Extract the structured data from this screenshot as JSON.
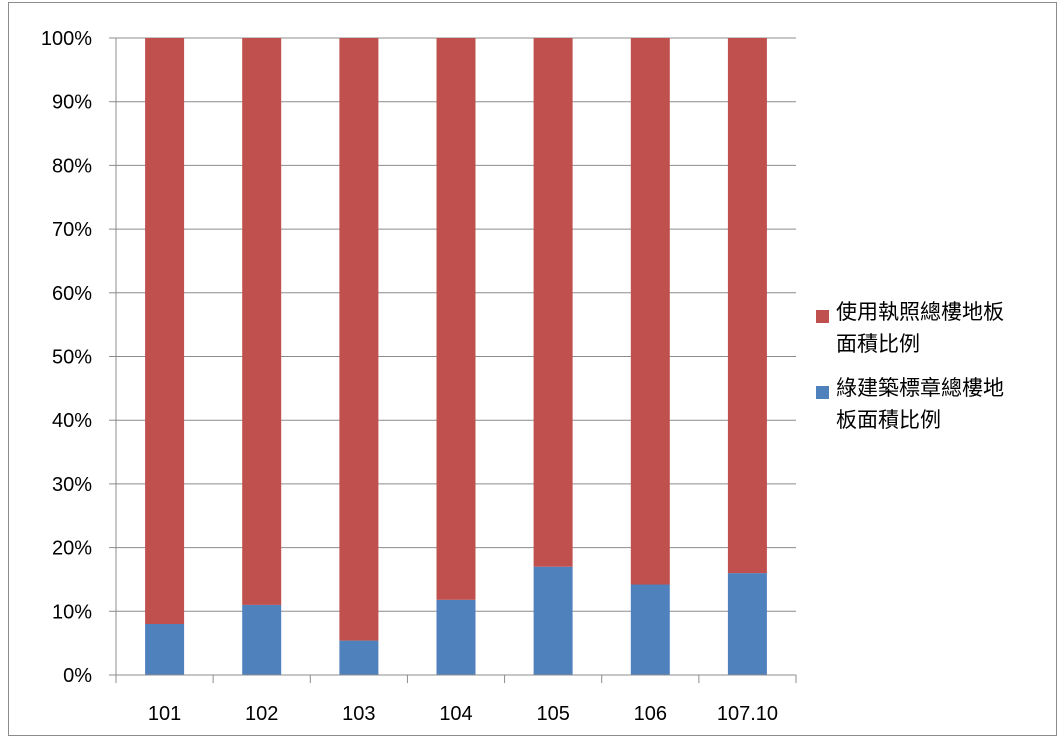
{
  "chart_data": {
    "type": "bar",
    "stacked": true,
    "normalized": true,
    "categories": [
      "101",
      "102",
      "103",
      "104",
      "105",
      "106",
      "107.10"
    ],
    "series": [
      {
        "name": "綠建築標章總樓地板面積比例",
        "color": "#4f81bd",
        "values": [
          8.0,
          11.0,
          5.4,
          11.8,
          17.0,
          14.2,
          16.0
        ]
      },
      {
        "name": "使用執照總樓地板面積比例",
        "color": "#c0504d",
        "values": [
          92.0,
          89.0,
          94.6,
          88.2,
          83.0,
          85.8,
          84.0
        ]
      }
    ],
    "yticks": [
      "0%",
      "10%",
      "20%",
      "30%",
      "40%",
      "50%",
      "60%",
      "70%",
      "80%",
      "90%",
      "100%"
    ],
    "ylim": [
      0,
      100
    ],
    "grid": true,
    "legend_position": "right",
    "legend": [
      {
        "label": "使用執照總樓地板面積比例",
        "line1": "使用執照總樓地板",
        "line2": "面積比例",
        "color": "#c0504d"
      },
      {
        "label": "綠建築標章總樓地板面積比例",
        "line1": "綠建築標章總樓地",
        "line2": "板面積比例",
        "color": "#4f81bd"
      }
    ]
  }
}
